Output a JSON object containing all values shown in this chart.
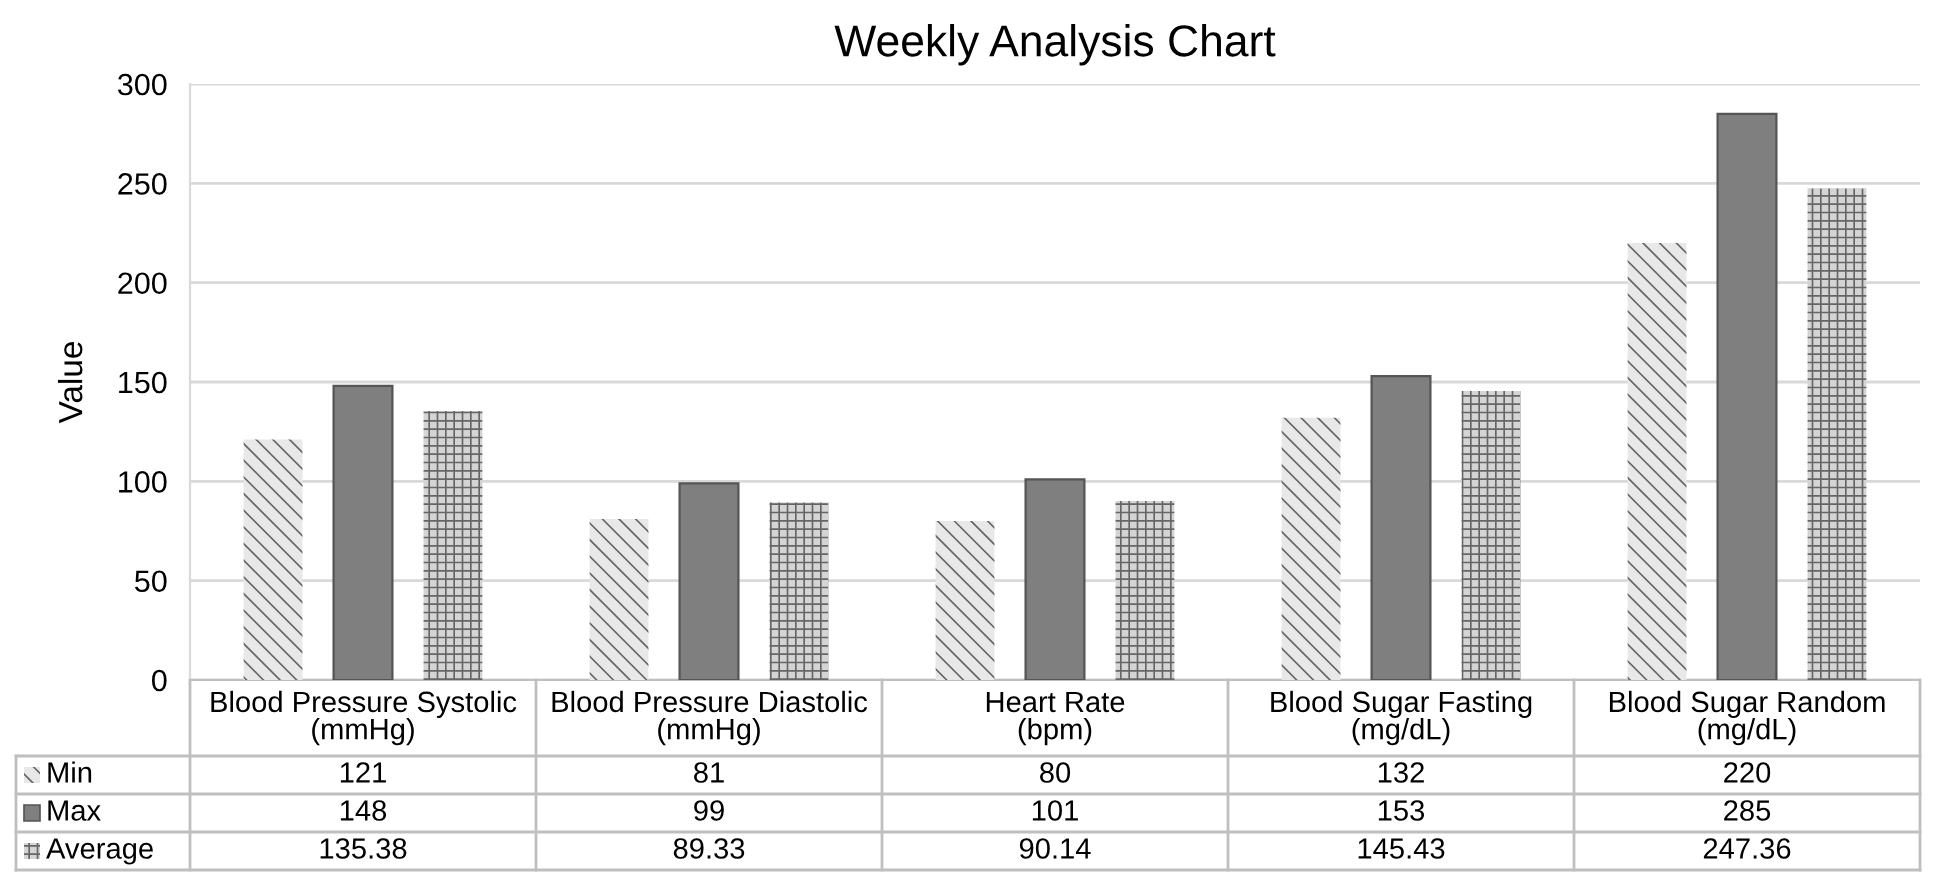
{
  "chart_data": {
    "type": "bar",
    "title": "Weekly Analysis Chart",
    "ylabel": "Value",
    "categories": [
      "Blood Pressure Systolic\n(mmHg)",
      "Blood Pressure Diastolic\n(mmHg)",
      "Heart Rate\n(bpm)",
      "Blood Sugar Fasting\n(mg/dL)",
      "Blood Sugar Random\n(mg/dL)"
    ],
    "series": [
      {
        "name": "Min",
        "color": "#e8e8e8",
        "values": [
          121,
          81,
          80,
          132,
          220
        ]
      },
      {
        "name": "Max",
        "color": "#7f7f7f",
        "values": [
          148,
          99,
          101,
          153,
          285
        ]
      },
      {
        "name": "Average",
        "color": "#d4d4d4",
        "values": [
          135.38,
          89.33,
          90.14,
          145.43,
          247.36
        ]
      }
    ],
    "ylim": [
      0,
      300
    ],
    "yticks": [
      0,
      50,
      100,
      150,
      200,
      250,
      300
    ],
    "grid": "y",
    "legend": "bottom",
    "data_labels": true
  }
}
